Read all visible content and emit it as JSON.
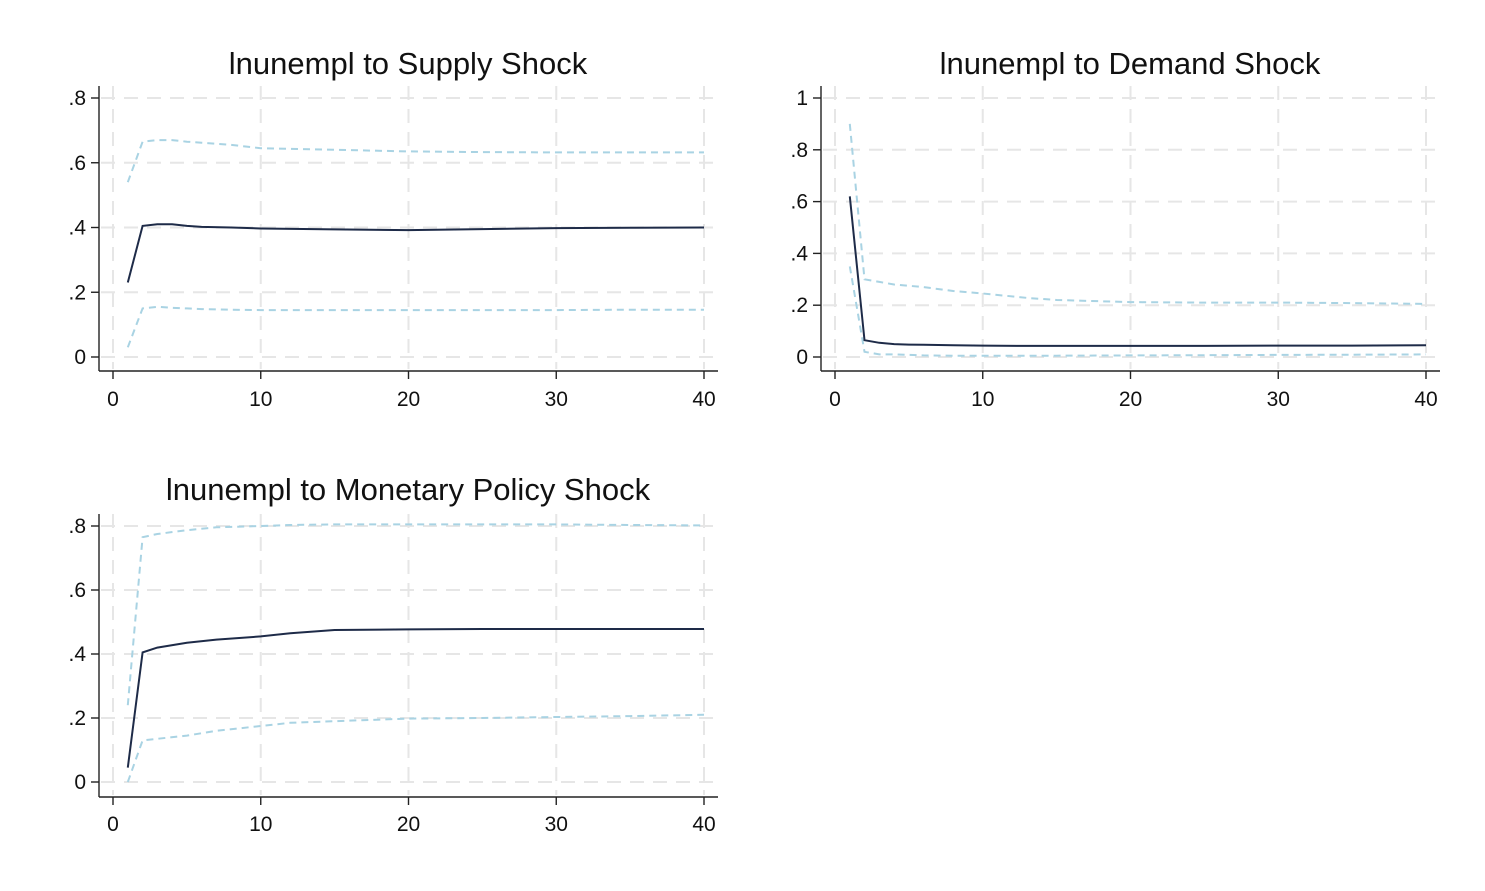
{
  "colors": {
    "response": "#1e2b48",
    "bands": "#a9d3e3",
    "grid": "#e6e6e6",
    "background": "#ffffff"
  },
  "chart_data": [
    {
      "type": "line",
      "title": "lnunempl to Supply Shock",
      "xlabel": "",
      "ylabel": "",
      "xlim": [
        0,
        40
      ],
      "ylim": [
        0,
        0.8
      ],
      "xticks": [
        0,
        10,
        20,
        30,
        40
      ],
      "xtick_labels": [
        "0",
        "10",
        "20",
        "30",
        "40"
      ],
      "yticks": [
        0,
        0.2,
        0.4,
        0.6,
        0.8
      ],
      "ytick_labels": [
        "0",
        ".2",
        ".4",
        ".6",
        ".8"
      ],
      "grid": true,
      "x": [
        1,
        2,
        3,
        4,
        5,
        6,
        8,
        10,
        15,
        20,
        25,
        30,
        35,
        40
      ],
      "series": [
        {
          "role": "lower",
          "values": [
            0.03,
            0.15,
            0.155,
            0.152,
            0.15,
            0.148,
            0.146,
            0.145,
            0.145,
            0.145,
            0.145,
            0.145,
            0.146,
            0.146
          ]
        },
        {
          "role": "irf",
          "values": [
            0.23,
            0.405,
            0.41,
            0.41,
            0.405,
            0.402,
            0.4,
            0.397,
            0.394,
            0.392,
            0.395,
            0.398,
            0.399,
            0.4
          ]
        },
        {
          "role": "upper",
          "values": [
            0.54,
            0.665,
            0.67,
            0.67,
            0.665,
            0.662,
            0.655,
            0.645,
            0.64,
            0.635,
            0.633,
            0.632,
            0.632,
            0.632
          ]
        }
      ]
    },
    {
      "type": "line",
      "title": "lnunempl to Demand Shock",
      "xlabel": "",
      "ylabel": "",
      "xlim": [
        0,
        40
      ],
      "ylim": [
        0,
        1
      ],
      "xticks": [
        0,
        10,
        20,
        30,
        40
      ],
      "xtick_labels": [
        "0",
        "10",
        "20",
        "30",
        "40"
      ],
      "yticks": [
        0,
        0.2,
        0.4,
        0.6,
        0.8,
        1
      ],
      "ytick_labels": [
        "0",
        ".2",
        ".4",
        ".6",
        ".8",
        "1"
      ],
      "grid": true,
      "x": [
        1,
        2,
        3,
        4,
        5,
        6,
        8,
        10,
        13,
        15,
        20,
        25,
        30,
        35,
        40
      ],
      "series": [
        {
          "role": "lower",
          "values": [
            0.35,
            0.02,
            0.01,
            0.01,
            0.008,
            0.006,
            0.005,
            0.005,
            0.005,
            0.005,
            0.006,
            0.007,
            0.008,
            0.009,
            0.01
          ]
        },
        {
          "role": "irf",
          "values": [
            0.62,
            0.065,
            0.055,
            0.05,
            0.048,
            0.047,
            0.045,
            0.044,
            0.043,
            0.043,
            0.043,
            0.043,
            0.044,
            0.044,
            0.045
          ]
        },
        {
          "role": "upper",
          "values": [
            0.9,
            0.3,
            0.29,
            0.28,
            0.275,
            0.27,
            0.255,
            0.245,
            0.228,
            0.22,
            0.212,
            0.21,
            0.21,
            0.208,
            0.205
          ]
        }
      ]
    },
    {
      "type": "line",
      "title": "lnunempl to Monetary Policy Shock",
      "xlabel": "",
      "ylabel": "",
      "xlim": [
        0,
        40
      ],
      "ylim": [
        0,
        0.8
      ],
      "xticks": [
        0,
        10,
        20,
        30,
        40
      ],
      "xtick_labels": [
        "0",
        "10",
        "20",
        "30",
        "40"
      ],
      "yticks": [
        0,
        0.2,
        0.4,
        0.6,
        0.8
      ],
      "ytick_labels": [
        "0",
        ".2",
        ".4",
        ".6",
        ".8"
      ],
      "grid": true,
      "x": [
        1,
        2,
        3,
        5,
        7,
        10,
        12,
        15,
        20,
        25,
        30,
        35,
        40
      ],
      "series": [
        {
          "role": "lower",
          "values": [
            0.0,
            0.13,
            0.135,
            0.145,
            0.16,
            0.175,
            0.185,
            0.19,
            0.198,
            0.2,
            0.203,
            0.206,
            0.21
          ]
        },
        {
          "role": "irf",
          "values": [
            0.045,
            0.405,
            0.42,
            0.435,
            0.445,
            0.455,
            0.465,
            0.475,
            0.477,
            0.478,
            0.478,
            0.478,
            0.478
          ]
        },
        {
          "role": "upper",
          "values": [
            0.24,
            0.765,
            0.775,
            0.787,
            0.796,
            0.8,
            0.803,
            0.805,
            0.805,
            0.805,
            0.805,
            0.803,
            0.802
          ]
        }
      ]
    }
  ]
}
